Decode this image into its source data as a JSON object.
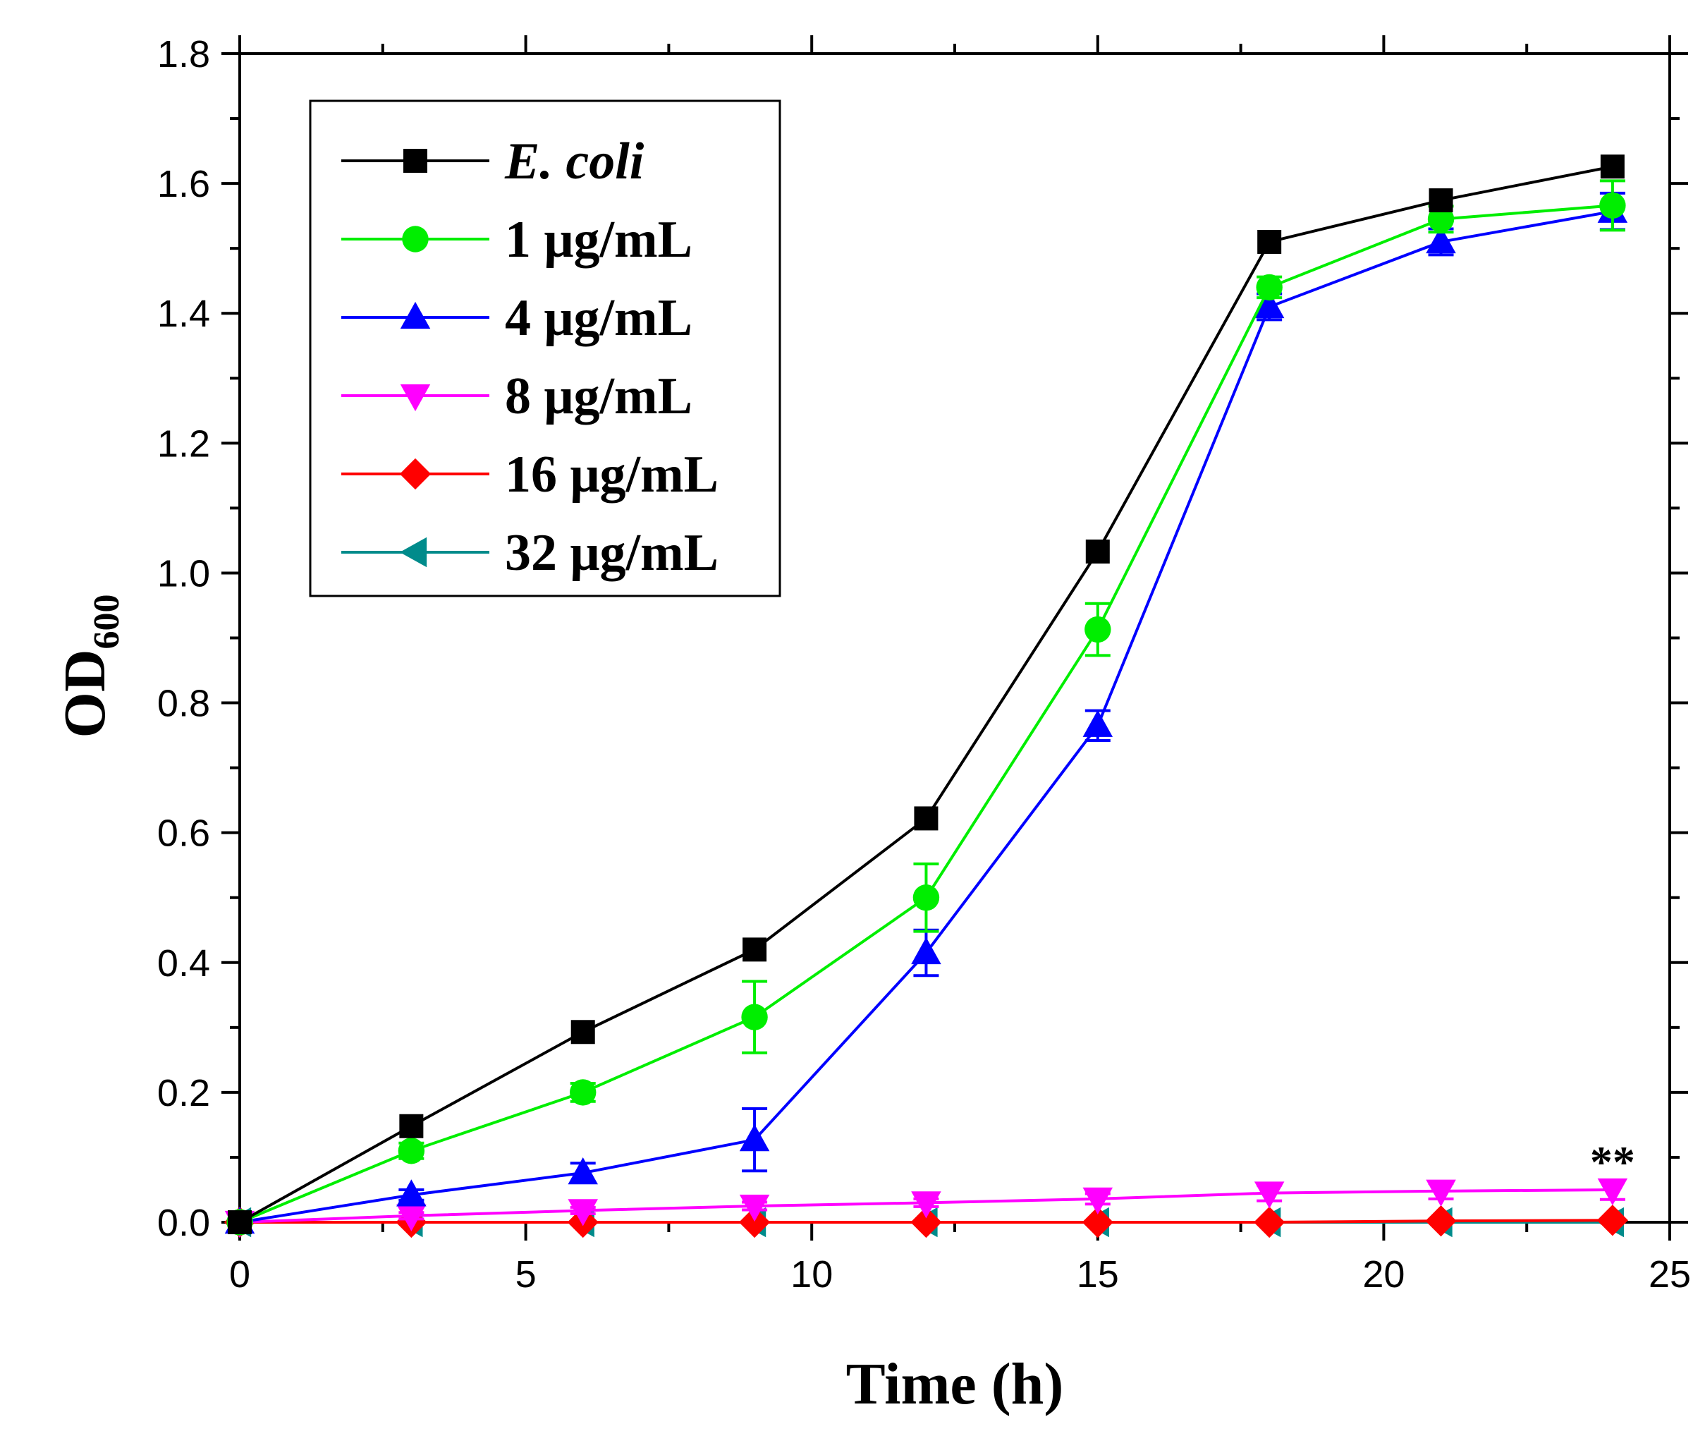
{
  "chart_data": {
    "type": "line",
    "title": "",
    "xlabel": "Time (h)",
    "ylabel": "OD",
    "ylabel_sub": "600",
    "xlim": [
      0,
      25
    ],
    "ylim": [
      0,
      1.8
    ],
    "xticks": [
      0,
      5,
      10,
      15,
      20,
      25
    ],
    "xtick_labels": [
      "0",
      "5",
      "10",
      "15",
      "20",
      "25"
    ],
    "yticks": [
      0,
      0.2,
      0.4,
      0.6,
      0.8,
      1.0,
      1.2,
      1.4,
      1.6,
      1.8
    ],
    "ytick_labels": [
      "0.0",
      "0.2",
      "0.4",
      "0.6",
      "0.8",
      "1.0",
      "1.2",
      "1.4",
      "1.6",
      "1.8"
    ],
    "grid": false,
    "legend_position": "top-left",
    "x": [
      0,
      3,
      6,
      9,
      12,
      15,
      18,
      21,
      24
    ],
    "series": [
      {
        "name": "E. coli",
        "italic": true,
        "color": "#000000",
        "marker": "square",
        "values": [
          0.0,
          0.148,
          0.293,
          0.42,
          0.622,
          1.033,
          1.51,
          1.574,
          1.626
        ],
        "errors": [
          0,
          0,
          0,
          0,
          0,
          0,
          0,
          0,
          0
        ]
      },
      {
        "name": "1 μg/mL",
        "italic": false,
        "color": "#00ee00",
        "marker": "circle",
        "values": [
          0.0,
          0.11,
          0.2,
          0.316,
          0.5,
          0.913,
          1.44,
          1.545,
          1.566
        ],
        "errors": [
          0,
          0.012,
          0.014,
          0.055,
          0.052,
          0.04,
          0.016,
          0.02,
          0.038
        ]
      },
      {
        "name": "4 μg/mL",
        "italic": false,
        "color": "#0000ff",
        "marker": "triangle-up",
        "values": [
          0.0,
          0.042,
          0.076,
          0.127,
          0.415,
          0.765,
          1.41,
          1.51,
          1.557
        ],
        "errors": [
          0,
          0.008,
          0.015,
          0.048,
          0.035,
          0.023,
          0.02,
          0.02,
          0.028
        ]
      },
      {
        "name": "8 μg/mL",
        "italic": false,
        "color": "#ff00ff",
        "marker": "triangle-down",
        "values": [
          0.0,
          0.01,
          0.018,
          0.025,
          0.03,
          0.036,
          0.045,
          0.048,
          0.05
        ],
        "errors": [
          0,
          0.005,
          0.005,
          0.006,
          0.006,
          0.008,
          0.012,
          0.012,
          0.015
        ]
      },
      {
        "name": "16 μg/mL",
        "italic": false,
        "color": "#ff0000",
        "marker": "diamond",
        "values": [
          0.0,
          0.0,
          0.0,
          0.0,
          0.0,
          0.0,
          0.0,
          0.002,
          0.003
        ],
        "errors": [
          0,
          0,
          0,
          0,
          0,
          0,
          0,
          0,
          0
        ]
      },
      {
        "name": "32 μg/mL",
        "italic": false,
        "color": "#008b8b",
        "marker": "triangle-left",
        "values": [
          0.0,
          0.0,
          0.0,
          0.0,
          0.0,
          0.0,
          0.0,
          0.0,
          0.0
        ],
        "errors": [
          0,
          0,
          0,
          0,
          0,
          0,
          0,
          0,
          0
        ]
      }
    ],
    "annotations": [
      {
        "text": "**",
        "x": 24,
        "y": 0.1
      }
    ]
  }
}
